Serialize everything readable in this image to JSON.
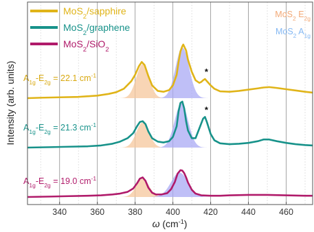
{
  "chart_data": {
    "type": "line",
    "title": "",
    "xlabel_symbol": "ω",
    "xlabel_unit": "(cm",
    "xlabel_unit_sup": "-1",
    "xlabel_unit_close": ")",
    "ylabel": "Intensity (arb. units)",
    "xlim": [
      323,
      474
    ],
    "xticks": [
      340,
      360,
      380,
      400,
      420,
      440,
      460
    ],
    "grid": true,
    "legend_position": "top-left",
    "legend": [
      {
        "pre": "MoS",
        "sub": "2",
        "post": "/sapphire",
        "color": "#e0b418"
      },
      {
        "pre": "MoS",
        "sub": "2",
        "post": "/graphene",
        "color": "#17928a"
      },
      {
        "pre": "MoS",
        "sub": "2",
        "post": "/SiO",
        "sub2": "2",
        "color": "#b01a6a"
      }
    ],
    "mode_labels": [
      {
        "pre": "MoS",
        "sub": "2",
        "post": " E",
        "sub2": "2g",
        "color": "#f2a977"
      },
      {
        "pre": "MoS",
        "sub": "2",
        "post": " A",
        "sub2": "1g",
        "color": "#84b8f3"
      }
    ],
    "peak_fills": {
      "e2g": {
        "center": 384,
        "color": "#f6c79c"
      },
      "a1g": {
        "center": 405,
        "color": "#a9a9f4"
      }
    },
    "series": [
      {
        "name": "MoS2/sapphire",
        "color": "#e0b418",
        "offset": 2.0,
        "annotation": {
          "pre": "A",
          "sub": "1g",
          "mid": "-E",
          "sub2": "2g",
          "post": " = 22.1 cm",
          "sup": "-1",
          "color": "#d8a80e"
        },
        "star_at": 417,
        "x": [
          323,
          330,
          340,
          350,
          360,
          366,
          370,
          374,
          378,
          380,
          382,
          383.5,
          385,
          387,
          389,
          392,
          395,
          398,
          400,
          402,
          403,
          404,
          405,
          405.5,
          407,
          408,
          410,
          412,
          414,
          415,
          416,
          417,
          418,
          420,
          422,
          425,
          430,
          435,
          440,
          445,
          448,
          451,
          455,
          460,
          465,
          470,
          474
        ],
        "y": [
          0.0,
          0.01,
          0.02,
          0.03,
          0.06,
          0.1,
          0.14,
          0.22,
          0.4,
          0.55,
          0.75,
          0.85,
          0.78,
          0.52,
          0.3,
          0.17,
          0.15,
          0.19,
          0.3,
          0.55,
          0.85,
          1.1,
          1.22,
          1.26,
          1.12,
          0.9,
          0.62,
          0.42,
          0.36,
          0.38,
          0.42,
          0.45,
          0.4,
          0.3,
          0.22,
          0.16,
          0.15,
          0.17,
          0.2,
          0.23,
          0.25,
          0.26,
          0.24,
          0.21,
          0.18,
          0.15,
          0.13
        ]
      },
      {
        "name": "MoS2/graphene",
        "color": "#17928a",
        "offset": 1.0,
        "annotation": {
          "pre": "A",
          "sub": "1g",
          "mid": "-E",
          "sub2": "2g",
          "post": " = 21.3 cm",
          "sup": "-1",
          "color": "#17928a"
        },
        "star_at": 417,
        "x": [
          323,
          335,
          345,
          355,
          362,
          368,
          372,
          376,
          379,
          381,
          382.5,
          384,
          385.5,
          387,
          389,
          392,
          395,
          398,
          400,
          402,
          403,
          404,
          405,
          406,
          407,
          408,
          410,
          412,
          414,
          416,
          417,
          418,
          420,
          422,
          425,
          430,
          435,
          440,
          445,
          448,
          451,
          455,
          460,
          465,
          470,
          474
        ],
        "y": [
          0.0,
          0.01,
          0.02,
          0.03,
          0.05,
          0.09,
          0.14,
          0.22,
          0.34,
          0.5,
          0.6,
          0.62,
          0.55,
          0.38,
          0.22,
          0.14,
          0.12,
          0.15,
          0.25,
          0.5,
          0.85,
          1.05,
          1.08,
          0.92,
          0.62,
          0.4,
          0.22,
          0.22,
          0.45,
          0.68,
          0.72,
          0.6,
          0.32,
          0.17,
          0.1,
          0.08,
          0.09,
          0.11,
          0.15,
          0.19,
          0.19,
          0.15,
          0.11,
          0.08,
          0.06,
          0.05
        ]
      },
      {
        "name": "MoS2/SiO2",
        "color": "#b01a6a",
        "offset": 0.0,
        "annotation": {
          "pre": "A",
          "sub": "1g",
          "mid": "-E",
          "sub2": "2g",
          "post": " = 19.0 cm",
          "sup": "-1",
          "color": "#b01a6a"
        },
        "x": [
          323,
          335,
          345,
          355,
          362,
          368,
          372,
          376,
          379,
          381,
          382.5,
          384,
          385.5,
          387,
          389,
          391,
          394,
          397,
          399,
          401,
          402.5,
          404,
          405,
          406,
          407,
          408,
          410,
          412,
          415,
          420,
          425,
          430,
          440,
          450,
          460,
          470,
          474
        ],
        "y": [
          0.0,
          0.01,
          0.02,
          0.03,
          0.04,
          0.06,
          0.08,
          0.12,
          0.2,
          0.32,
          0.43,
          0.46,
          0.38,
          0.22,
          0.1,
          0.06,
          0.06,
          0.09,
          0.18,
          0.35,
          0.55,
          0.63,
          0.62,
          0.56,
          0.46,
          0.34,
          0.17,
          0.08,
          0.04,
          0.03,
          0.03,
          0.04,
          0.05,
          0.05,
          0.04,
          0.03,
          0.03
        ]
      }
    ],
    "star_label": "*"
  }
}
